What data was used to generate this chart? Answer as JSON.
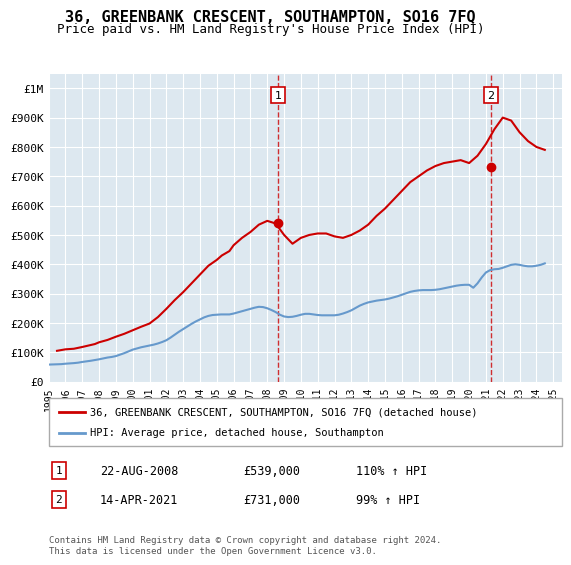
{
  "title": "36, GREENBANK CRESCENT, SOUTHAMPTON, SO16 7FQ",
  "subtitle": "Price paid vs. HM Land Registry's House Price Index (HPI)",
  "background_color": "#dde8f0",
  "plot_bg_color": "#dde8f0",
  "ylim": [
    0,
    1050000
  ],
  "yticks": [
    0,
    100000,
    200000,
    300000,
    400000,
    500000,
    600000,
    700000,
    800000,
    900000,
    1000000
  ],
  "ytick_labels": [
    "£0",
    "£100K",
    "£200K",
    "£300K",
    "£400K",
    "£500K",
    "£600K",
    "£700K",
    "£800K",
    "£900K",
    "£1M"
  ],
  "xmin": 1995,
  "xmax": 2025.5,
  "sale1_x": 2008.64,
  "sale1_y": 539000,
  "sale1_label": "1",
  "sale1_date": "22-AUG-2008",
  "sale1_price": "£539,000",
  "sale1_hpi": "110% ↑ HPI",
  "sale2_x": 2021.28,
  "sale2_y": 731000,
  "sale2_label": "2",
  "sale2_date": "14-APR-2021",
  "sale2_price": "£731,000",
  "sale2_hpi": "99% ↑ HPI",
  "hpi_color": "#6699cc",
  "price_color": "#cc0000",
  "dashed_color": "#cc0000",
  "legend_label1": "36, GREENBANK CRESCENT, SOUTHAMPTON, SO16 7FQ (detached house)",
  "legend_label2": "HPI: Average price, detached house, Southampton",
  "footer": "Contains HM Land Registry data © Crown copyright and database right 2024.\nThis data is licensed under the Open Government Licence v3.0.",
  "hpi_data_x": [
    1995,
    1995.25,
    1995.5,
    1995.75,
    1996,
    1996.25,
    1996.5,
    1996.75,
    1997,
    1997.25,
    1997.5,
    1997.75,
    1998,
    1998.25,
    1998.5,
    1998.75,
    1999,
    1999.25,
    1999.5,
    1999.75,
    2000,
    2000.25,
    2000.5,
    2000.75,
    2001,
    2001.25,
    2001.5,
    2001.75,
    2002,
    2002.25,
    2002.5,
    2002.75,
    2003,
    2003.25,
    2003.5,
    2003.75,
    2004,
    2004.25,
    2004.5,
    2004.75,
    2005,
    2005.25,
    2005.5,
    2005.75,
    2006,
    2006.25,
    2006.5,
    2006.75,
    2007,
    2007.25,
    2007.5,
    2007.75,
    2008,
    2008.25,
    2008.5,
    2008.75,
    2009,
    2009.25,
    2009.5,
    2009.75,
    2010,
    2010.25,
    2010.5,
    2010.75,
    2011,
    2011.25,
    2011.5,
    2011.75,
    2012,
    2012.25,
    2012.5,
    2012.75,
    2013,
    2013.25,
    2013.5,
    2013.75,
    2014,
    2014.25,
    2014.5,
    2014.75,
    2015,
    2015.25,
    2015.5,
    2015.75,
    2016,
    2016.25,
    2016.5,
    2016.75,
    2017,
    2017.25,
    2017.5,
    2017.75,
    2018,
    2018.25,
    2018.5,
    2018.75,
    2019,
    2019.25,
    2019.5,
    2019.75,
    2020,
    2020.25,
    2020.5,
    2020.75,
    2021,
    2021.25,
    2021.5,
    2021.75,
    2022,
    2022.25,
    2022.5,
    2022.75,
    2023,
    2023.25,
    2023.5,
    2023.75,
    2024,
    2024.25,
    2024.5
  ],
  "hpi_data_y": [
    58000,
    58500,
    59000,
    59500,
    61000,
    62000,
    63000,
    64500,
    67000,
    69000,
    71000,
    73500,
    76000,
    79000,
    82000,
    84000,
    87000,
    92000,
    97000,
    103000,
    109000,
    113000,
    117000,
    120000,
    123000,
    126000,
    130000,
    135000,
    141000,
    150000,
    160000,
    170000,
    179000,
    188000,
    197000,
    205000,
    212000,
    219000,
    224000,
    227000,
    228000,
    229000,
    229000,
    229000,
    232000,
    236000,
    240000,
    244000,
    248000,
    252000,
    255000,
    254000,
    250000,
    244000,
    237000,
    228000,
    222000,
    220000,
    221000,
    224000,
    228000,
    231000,
    231000,
    229000,
    227000,
    226000,
    226000,
    226000,
    226000,
    228000,
    232000,
    237000,
    243000,
    251000,
    259000,
    265000,
    270000,
    273000,
    276000,
    278000,
    280000,
    283000,
    287000,
    291000,
    296000,
    301000,
    306000,
    309000,
    311000,
    312000,
    312000,
    312000,
    313000,
    315000,
    318000,
    321000,
    324000,
    327000,
    329000,
    330000,
    330000,
    320000,
    335000,
    355000,
    372000,
    380000,
    383000,
    384000,
    388000,
    393000,
    398000,
    400000,
    398000,
    395000,
    393000,
    393000,
    395000,
    398000,
    403000
  ],
  "price_data_x": [
    1995.5,
    1996.0,
    1996.5,
    1997.0,
    1997.3,
    1997.75,
    1998.0,
    1998.5,
    1999.0,
    1999.5,
    2000.0,
    2000.5,
    2001.0,
    2001.5,
    2002.0,
    2002.5,
    2003.0,
    2003.5,
    2004.0,
    2004.5,
    2005.0,
    2005.3,
    2005.75,
    2006.0,
    2006.5,
    2007.0,
    2007.5,
    2008.0,
    2008.5,
    2009.0,
    2009.5,
    2010.0,
    2010.5,
    2011.0,
    2011.5,
    2012.0,
    2012.5,
    2013.0,
    2013.5,
    2014.0,
    2014.5,
    2015.0,
    2015.5,
    2016.0,
    2016.5,
    2017.0,
    2017.5,
    2018.0,
    2018.5,
    2019.0,
    2019.5,
    2020.0,
    2020.5,
    2021.0,
    2021.5,
    2022.0,
    2022.5,
    2023.0,
    2023.5,
    2024.0,
    2024.5
  ],
  "price_data_y": [
    105000,
    110000,
    112000,
    118000,
    122000,
    128000,
    134000,
    142000,
    153000,
    163000,
    175000,
    187000,
    198000,
    220000,
    248000,
    278000,
    305000,
    335000,
    365000,
    395000,
    415000,
    430000,
    445000,
    465000,
    490000,
    510000,
    535000,
    548000,
    539000,
    500000,
    470000,
    490000,
    500000,
    505000,
    505000,
    495000,
    490000,
    500000,
    515000,
    535000,
    565000,
    590000,
    620000,
    650000,
    680000,
    700000,
    720000,
    735000,
    745000,
    750000,
    755000,
    745000,
    770000,
    810000,
    860000,
    900000,
    890000,
    850000,
    820000,
    800000,
    790000
  ]
}
